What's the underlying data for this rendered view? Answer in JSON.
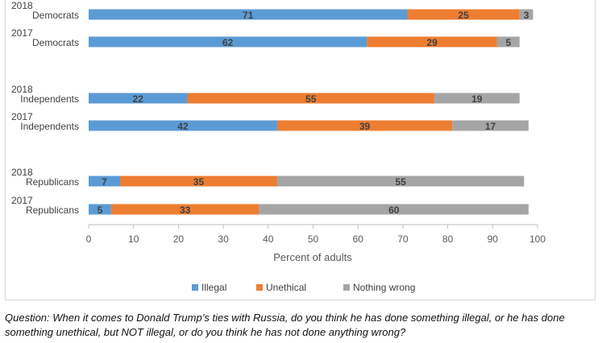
{
  "chart_data": {
    "type": "bar",
    "orientation": "horizontal",
    "stacked": true,
    "xlabel": "Percent of adults",
    "xlim": [
      0,
      100
    ],
    "xticks": [
      0,
      10,
      20,
      30,
      40,
      50,
      60,
      70,
      80,
      90,
      100
    ],
    "grid": false,
    "legend_position": "bottom",
    "categories": [
      {
        "year": "2018",
        "group": "Democrats"
      },
      {
        "year": "2017",
        "group": "Democrats"
      },
      {
        "year": "2018",
        "group": "Independents"
      },
      {
        "year": "2017",
        "group": "Independents"
      },
      {
        "year": "2018",
        "group": "Republicans"
      },
      {
        "year": "2017",
        "group": "Republicans"
      }
    ],
    "series": [
      {
        "name": "Illegal",
        "color": "#5b9bd5",
        "values": [
          71,
          62,
          22,
          42,
          7,
          5
        ]
      },
      {
        "name": "Unethical",
        "color": "#ed7d31",
        "values": [
          25,
          29,
          55,
          39,
          35,
          33
        ]
      },
      {
        "name": "Nothing wrong",
        "color": "#a5a5a5",
        "values": [
          3,
          5,
          19,
          17,
          55,
          60
        ]
      }
    ]
  },
  "caption": "Question: When it comes to Donald Trump’s ties with Russia, do you think he has done something illegal, or he has done something unethical, but NOT illegal, or do you think he has not done anything wrong?"
}
